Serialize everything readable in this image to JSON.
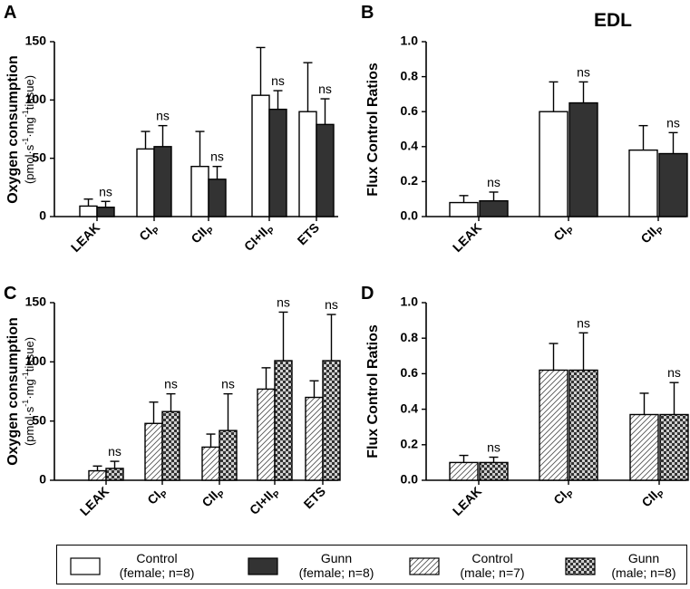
{
  "header": {
    "edl_label": "EDL"
  },
  "colors": {
    "control_female": "#ffffff",
    "gunn_female": "#333333",
    "stroke": "#000000"
  },
  "patterns": {
    "control_male": "hatched",
    "gunn_male": "checkered"
  },
  "chart_data": [
    {
      "id": "A",
      "panel_label": "A",
      "type": "bar",
      "ylabel": "Oxygen consumption",
      "ylabel_units": {
        "pre": "(pmol·s",
        "sup1": "-1",
        "mid": "·mg",
        "sup2": "-1",
        "post": "tissue)"
      },
      "ylim": [
        0,
        150
      ],
      "yticks": [
        "0",
        "50",
        "100",
        "150"
      ],
      "categories": [
        {
          "main": "LEAK",
          "sub": ""
        },
        {
          "main": "CI",
          "sub": "P"
        },
        {
          "main": "CII",
          "sub": "P"
        },
        {
          "main": "CI+II",
          "sub": "P"
        },
        {
          "main": "ETS",
          "sub": ""
        }
      ],
      "series": [
        {
          "name": "Control (female; n=8)",
          "style": "control_female",
          "values": [
            9,
            58,
            43,
            104,
            90
          ],
          "errors": [
            6,
            15,
            30,
            41,
            42
          ]
        },
        {
          "name": "Gunn (female; n=8)",
          "style": "gunn_female",
          "values": [
            8,
            60,
            32,
            92,
            79
          ],
          "errors": [
            5,
            18,
            11,
            16,
            22
          ]
        }
      ],
      "annotations": [
        "ns",
        "ns",
        "ns",
        "ns",
        "ns"
      ]
    },
    {
      "id": "B",
      "panel_label": "B",
      "type": "bar",
      "ylabel": "Flux Control Ratios",
      "ylim": [
        0,
        1.0
      ],
      "yticks": [
        "0.0",
        "0.2",
        "0.4",
        "0.6",
        "0.8",
        "1.0"
      ],
      "categories": [
        {
          "main": "LEAK",
          "sub": ""
        },
        {
          "main": "CI",
          "sub": "P"
        },
        {
          "main": "CII",
          "sub": "P"
        }
      ],
      "series": [
        {
          "name": "Control (female; n=8)",
          "style": "control_female",
          "values": [
            0.08,
            0.6,
            0.38
          ],
          "errors": [
            0.04,
            0.17,
            0.14
          ]
        },
        {
          "name": "Gunn (female; n=8)",
          "style": "gunn_female",
          "values": [
            0.09,
            0.65,
            0.36
          ],
          "errors": [
            0.05,
            0.12,
            0.12
          ]
        }
      ],
      "annotations": [
        "ns",
        "ns",
        "ns"
      ]
    },
    {
      "id": "C",
      "panel_label": "C",
      "type": "bar",
      "ylabel": "Oxygen consumption",
      "ylabel_units": {
        "pre": "(pmol·s",
        "sup1": "-1",
        "mid": "·mg",
        "sup2": "-1",
        "post": "tissue)"
      },
      "ylim": [
        0,
        150
      ],
      "yticks": [
        "0",
        "50",
        "100",
        "150"
      ],
      "categories": [
        {
          "main": "LEAK",
          "sub": ""
        },
        {
          "main": "CI",
          "sub": "P"
        },
        {
          "main": "CII",
          "sub": "P"
        },
        {
          "main": "CI+II",
          "sub": "P"
        },
        {
          "main": "ETS",
          "sub": ""
        }
      ],
      "series": [
        {
          "name": "Control (male; n=7)",
          "style": "control_male",
          "values": [
            8,
            48,
            28,
            77,
            70
          ],
          "errors": [
            4,
            18,
            11,
            18,
            14
          ]
        },
        {
          "name": "Gunn (male; n=8)",
          "style": "gunn_male",
          "values": [
            10,
            58,
            42,
            101,
            101
          ],
          "errors": [
            6,
            15,
            31,
            41,
            39
          ]
        }
      ],
      "annotations": [
        "ns",
        "ns",
        "ns",
        "ns",
        "ns"
      ]
    },
    {
      "id": "D",
      "panel_label": "D",
      "type": "bar",
      "ylabel": "Flux Control Ratios",
      "ylim": [
        0,
        1.0
      ],
      "yticks": [
        "0.0",
        "0.2",
        "0.4",
        "0.6",
        "0.8",
        "1.0"
      ],
      "categories": [
        {
          "main": "LEAK",
          "sub": ""
        },
        {
          "main": "CI",
          "sub": "P"
        },
        {
          "main": "CII",
          "sub": "P"
        }
      ],
      "series": [
        {
          "name": "Control (male; n=7)",
          "style": "control_male",
          "values": [
            0.1,
            0.62,
            0.37
          ],
          "errors": [
            0.04,
            0.15,
            0.12
          ]
        },
        {
          "name": "Gunn (male; n=8)",
          "style": "gunn_male",
          "values": [
            0.1,
            0.62,
            0.37
          ],
          "errors": [
            0.03,
            0.21,
            0.18
          ]
        }
      ],
      "annotations": [
        "ns",
        "ns",
        "ns"
      ]
    }
  ],
  "legend": [
    {
      "style": "control_female",
      "line1": "Control",
      "line2": "(female; n=8)"
    },
    {
      "style": "gunn_female",
      "line1": "Gunn",
      "line2": "(female; n=8)"
    },
    {
      "style": "control_male",
      "line1": "Control",
      "line2": "(male; n=7)"
    },
    {
      "style": "gunn_male",
      "line1": "Gunn",
      "line2": "(male; n=8)"
    }
  ]
}
